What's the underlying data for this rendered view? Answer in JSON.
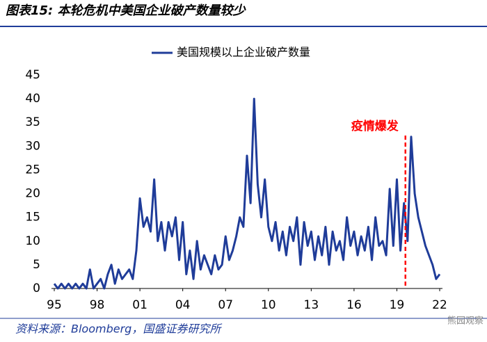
{
  "chart_data": {
    "type": "line",
    "title": "图表15: 本轮危机中美国企业破产数量较少",
    "source": "资料来源：Bloomberg，国盛证券研究所",
    "watermark": "熊园观察",
    "annotation": {
      "text": "疫情爆发",
      "x": 2019.6,
      "color": "#ff0000"
    },
    "x": [
      1995,
      1995.25,
      1995.5,
      1995.75,
      1996,
      1996.25,
      1996.5,
      1996.75,
      1997,
      1997.25,
      1997.5,
      1997.75,
      1998,
      1998.25,
      1998.5,
      1998.75,
      1999,
      1999.25,
      1999.5,
      1999.75,
      2000,
      2000.25,
      2000.5,
      2000.75,
      2001,
      2001.25,
      2001.5,
      2001.75,
      2002,
      2002.25,
      2002.5,
      2002.75,
      2003,
      2003.25,
      2003.5,
      2003.75,
      2004,
      2004.25,
      2004.5,
      2004.75,
      2005,
      2005.25,
      2005.5,
      2005.75,
      2006,
      2006.25,
      2006.5,
      2006.75,
      2007,
      2007.25,
      2007.5,
      2007.75,
      2008,
      2008.25,
      2008.5,
      2008.75,
      2009,
      2009.25,
      2009.5,
      2009.75,
      2010,
      2010.25,
      2010.5,
      2010.75,
      2011,
      2011.25,
      2011.5,
      2011.75,
      2012,
      2012.25,
      2012.5,
      2012.75,
      2013,
      2013.25,
      2013.5,
      2013.75,
      2014,
      2014.25,
      2014.5,
      2014.75,
      2015,
      2015.25,
      2015.5,
      2015.75,
      2016,
      2016.25,
      2016.5,
      2016.75,
      2017,
      2017.25,
      2017.5,
      2017.75,
      2018,
      2018.25,
      2018.5,
      2018.75,
      2019,
      2019.25,
      2019.5,
      2019.75,
      2020,
      2020.25,
      2020.5,
      2020.75,
      2021,
      2021.25,
      2021.5,
      2021.75,
      2022
    ],
    "series": [
      {
        "name": "美国规模以上企业破产数量",
        "color": "#1f3c99",
        "values": [
          1,
          0,
          1,
          0,
          1,
          0,
          1,
          0,
          1,
          0,
          4,
          0,
          1,
          2,
          0,
          3,
          5,
          1,
          4,
          2,
          3,
          4,
          2,
          8,
          19,
          13,
          15,
          12,
          23,
          10,
          14,
          8,
          14,
          11,
          15,
          6,
          14,
          3,
          8,
          2,
          10,
          4,
          7,
          5,
          3,
          7,
          4,
          5,
          11,
          6,
          8,
          11,
          15,
          13,
          28,
          18,
          40,
          22,
          15,
          23,
          13,
          10,
          14,
          8,
          12,
          7,
          13,
          10,
          15,
          5,
          14,
          9,
          12,
          6,
          11,
          7,
          13,
          5,
          12,
          8,
          10,
          6,
          15,
          9,
          12,
          7,
          11,
          8,
          13,
          6,
          15,
          9,
          10,
          7,
          21,
          9,
          23,
          8,
          18,
          10,
          32,
          20,
          15,
          12,
          9,
          7,
          5,
          2,
          3
        ]
      }
    ],
    "xlim": [
      1995,
      2022
    ],
    "xticks": [
      {
        "value": 1995,
        "label": "95"
      },
      {
        "value": 1998,
        "label": "98"
      },
      {
        "value": 2001,
        "label": "01"
      },
      {
        "value": 2004,
        "label": "04"
      },
      {
        "value": 2007,
        "label": "07"
      },
      {
        "value": 2010,
        "label": "10"
      },
      {
        "value": 2013,
        "label": "13"
      },
      {
        "value": 2016,
        "label": "16"
      },
      {
        "value": 2019,
        "label": "19"
      },
      {
        "value": 2022,
        "label": "22"
      }
    ],
    "ylim": [
      0,
      45
    ],
    "yticks": [
      0,
      5,
      10,
      15,
      20,
      25,
      30,
      35,
      40,
      45
    ]
  }
}
